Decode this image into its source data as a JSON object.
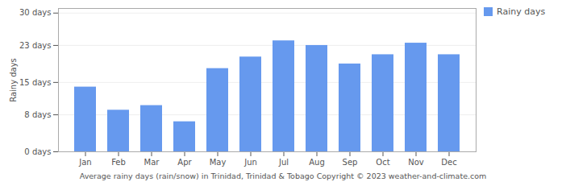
{
  "chart_data": {
    "type": "bar",
    "title": "Average rainy days (rain/snow) in Trinidad, Trinidad & Tobago   Copyright © 2023  weather-and-climate.com",
    "ylabel": "Rainy days",
    "categories": [
      "Jan",
      "Feb",
      "Mar",
      "Apr",
      "May",
      "Jun",
      "Jul",
      "Aug",
      "Sep",
      "Oct",
      "Nov",
      "Dec"
    ],
    "series": [
      {
        "name": "Rainy days",
        "color": "#6699ee",
        "values": [
          14.0,
          9.0,
          10.0,
          6.5,
          18.0,
          20.5,
          24.0,
          23.0,
          19.0,
          21.0,
          23.5,
          21.0
        ]
      }
    ],
    "ylim": [
      0,
      31
    ],
    "yticks": [
      {
        "value": 0,
        "label": "0 days"
      },
      {
        "value": 8,
        "label": "8 days"
      },
      {
        "value": 15,
        "label": "15 days"
      },
      {
        "value": 23,
        "label": "23 days"
      },
      {
        "value": 30,
        "label": "30 days"
      }
    ],
    "grid": true,
    "legend": "upper right"
  }
}
